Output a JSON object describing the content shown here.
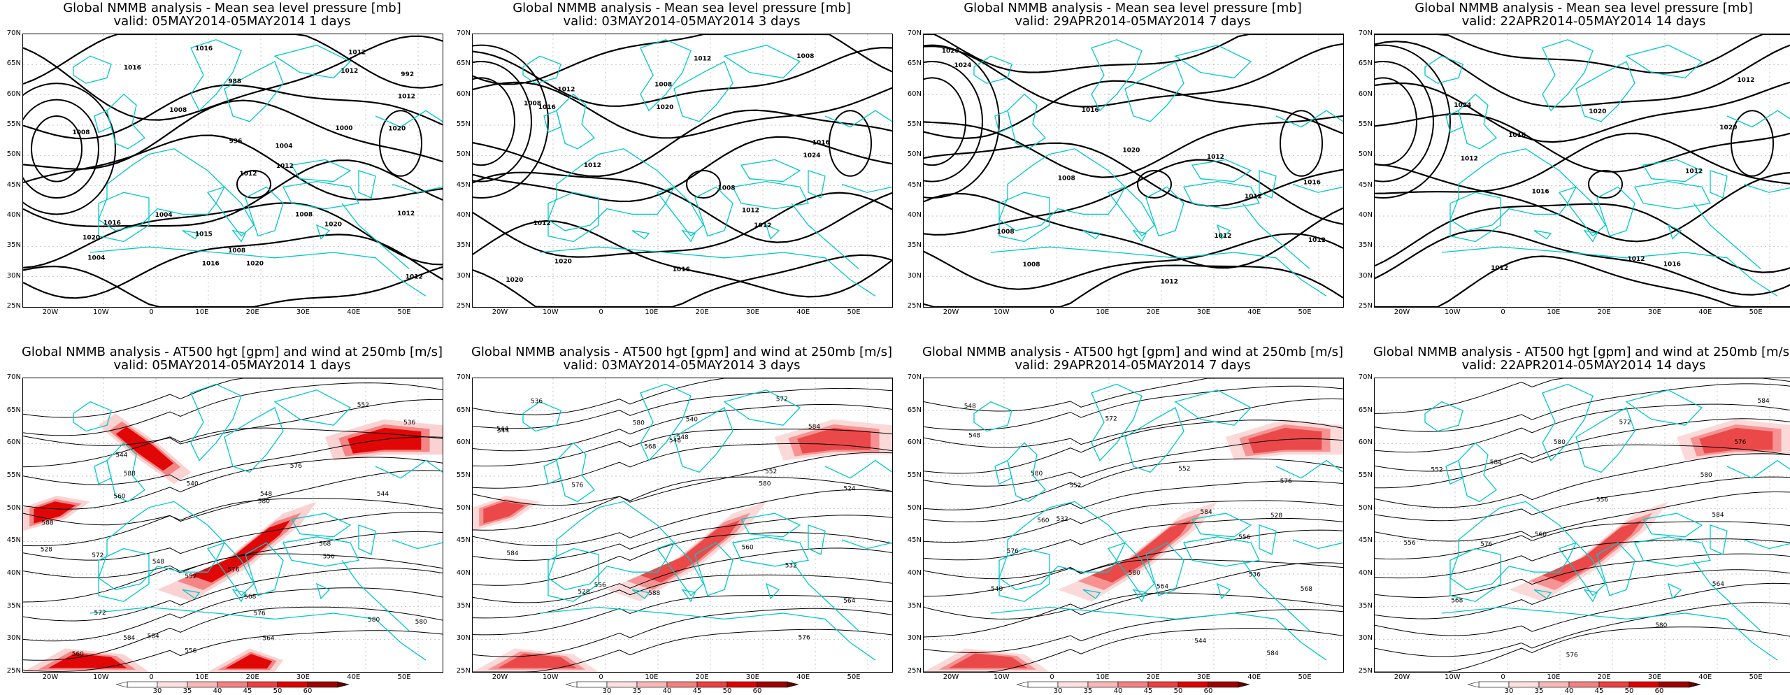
{
  "panels": [
    {
      "title": "Global NMMB analysis - Mean sea level pressure [mb]",
      "valid": "valid: 05MAY2014-05MAY2014   1 days",
      "kind": "mslp",
      "seed": 1,
      "labels": [
        "1016",
        "1004",
        "1020",
        "1015",
        "1020",
        "1004",
        "988",
        "992",
        "996",
        "1000",
        "1004",
        "1008",
        "1020",
        "1016",
        "1012",
        "1008",
        "1012",
        "1016",
        "1020",
        "1012",
        "1016",
        "1012",
        "1008",
        "1012",
        "1012",
        "1008",
        "1012"
      ]
    },
    {
      "title": "Global NMMB analysis - Mean sea level pressure [mb]",
      "valid": "valid: 03MAY2014-05MAY2014   3 days",
      "kind": "mslp",
      "seed": 2,
      "labels": [
        "1016",
        "1020",
        "1024",
        "1012",
        "1012",
        "1020",
        "1012",
        "1008",
        "1008",
        "1016",
        "1012",
        "1012",
        "1020",
        "1016",
        "1008",
        "1012",
        "1008"
      ]
    },
    {
      "title": "Global NMMB analysis - Mean sea level pressure [mb]",
      "valid": "valid: 29APR2014-05MAY2014   7 days",
      "kind": "mslp",
      "seed": 3,
      "labels": [
        "1024",
        "1020",
        "1016",
        "1008",
        "1012",
        "1008",
        "1012",
        "1020",
        "1016",
        "1012",
        "1008",
        "1012",
        "1012"
      ]
    },
    {
      "title": "Global NMMB analysis - Mean sea level pressure [mb]",
      "valid": "valid: 22APR2014-05MAY2014  14 days",
      "kind": "mslp",
      "seed": 4,
      "labels": [
        "1024",
        "1020",
        "1020",
        "1016",
        "1016",
        "1012",
        "1012",
        "1012",
        "1016",
        "1012",
        "1012"
      ]
    },
    {
      "title": "Global NMMB analysis - AT500 hgt [gpm] and wind at 250mb [m/s]",
      "valid": "valid: 05MAY2014-05MAY2014   1 days",
      "kind": "z500",
      "seed": 5,
      "labels": [
        "544",
        "548",
        "528",
        "552",
        "556",
        "560",
        "564",
        "536",
        "540",
        "544",
        "548",
        "568",
        "572",
        "556",
        "552",
        "560",
        "568",
        "572",
        "576",
        "580",
        "584",
        "576",
        "588",
        "580",
        "588",
        "576",
        "580",
        "584"
      ]
    },
    {
      "title": "Global NMMB analysis - AT500 hgt [gpm] and wind at 250mb [m/s]",
      "valid": "valid: 03MAY2014-05MAY2014   3 days",
      "kind": "z500",
      "seed": 6,
      "labels": [
        "544",
        "548",
        "524",
        "528",
        "532",
        "536",
        "540",
        "544",
        "548",
        "552",
        "556",
        "560",
        "564",
        "568",
        "572",
        "576",
        "580",
        "584",
        "588",
        "576",
        "580",
        "584"
      ]
    },
    {
      "title": "Global NMMB analysis - AT500 hgt [gpm] and wind at 250mb [m/s]",
      "valid": "valid: 29APR2014-05MAY2014   7 days",
      "kind": "z500",
      "seed": 7,
      "labels": [
        "548",
        "552",
        "528",
        "532",
        "536",
        "540",
        "544",
        "548",
        "552",
        "556",
        "560",
        "564",
        "568",
        "572",
        "576",
        "580",
        "584",
        "576",
        "580",
        "584"
      ]
    },
    {
      "title": "Global NMMB analysis - AT500 hgt [gpm] and wind at 250mb [m/s]",
      "valid": "valid: 22APR2014-05MAY2014  14 days",
      "kind": "z500",
      "seed": 8,
      "labels": [
        "552",
        "556",
        "556",
        "560",
        "564",
        "568",
        "572",
        "576",
        "580",
        "584",
        "576",
        "580",
        "584",
        "576",
        "580",
        "584"
      ]
    }
  ],
  "lat_labels": [
    "70N",
    "65N",
    "60N",
    "55N",
    "50N",
    "45N",
    "40N",
    "35N",
    "30N",
    "25N"
  ],
  "lon_labels": [
    "20W",
    "10W",
    "0",
    "10E",
    "20E",
    "30E",
    "40E",
    "50E"
  ],
  "colorbar_labels": [
    "30",
    "35",
    "40",
    "45",
    "50",
    "60"
  ],
  "colors": {
    "contour": "#000000",
    "coast": "#00c8c8",
    "grid": "#b0b0b0",
    "jet_light": "#fbd0d0",
    "jet_mid": "#f48080",
    "jet_dark": "#e00000",
    "jet_core": "#a00000"
  }
}
